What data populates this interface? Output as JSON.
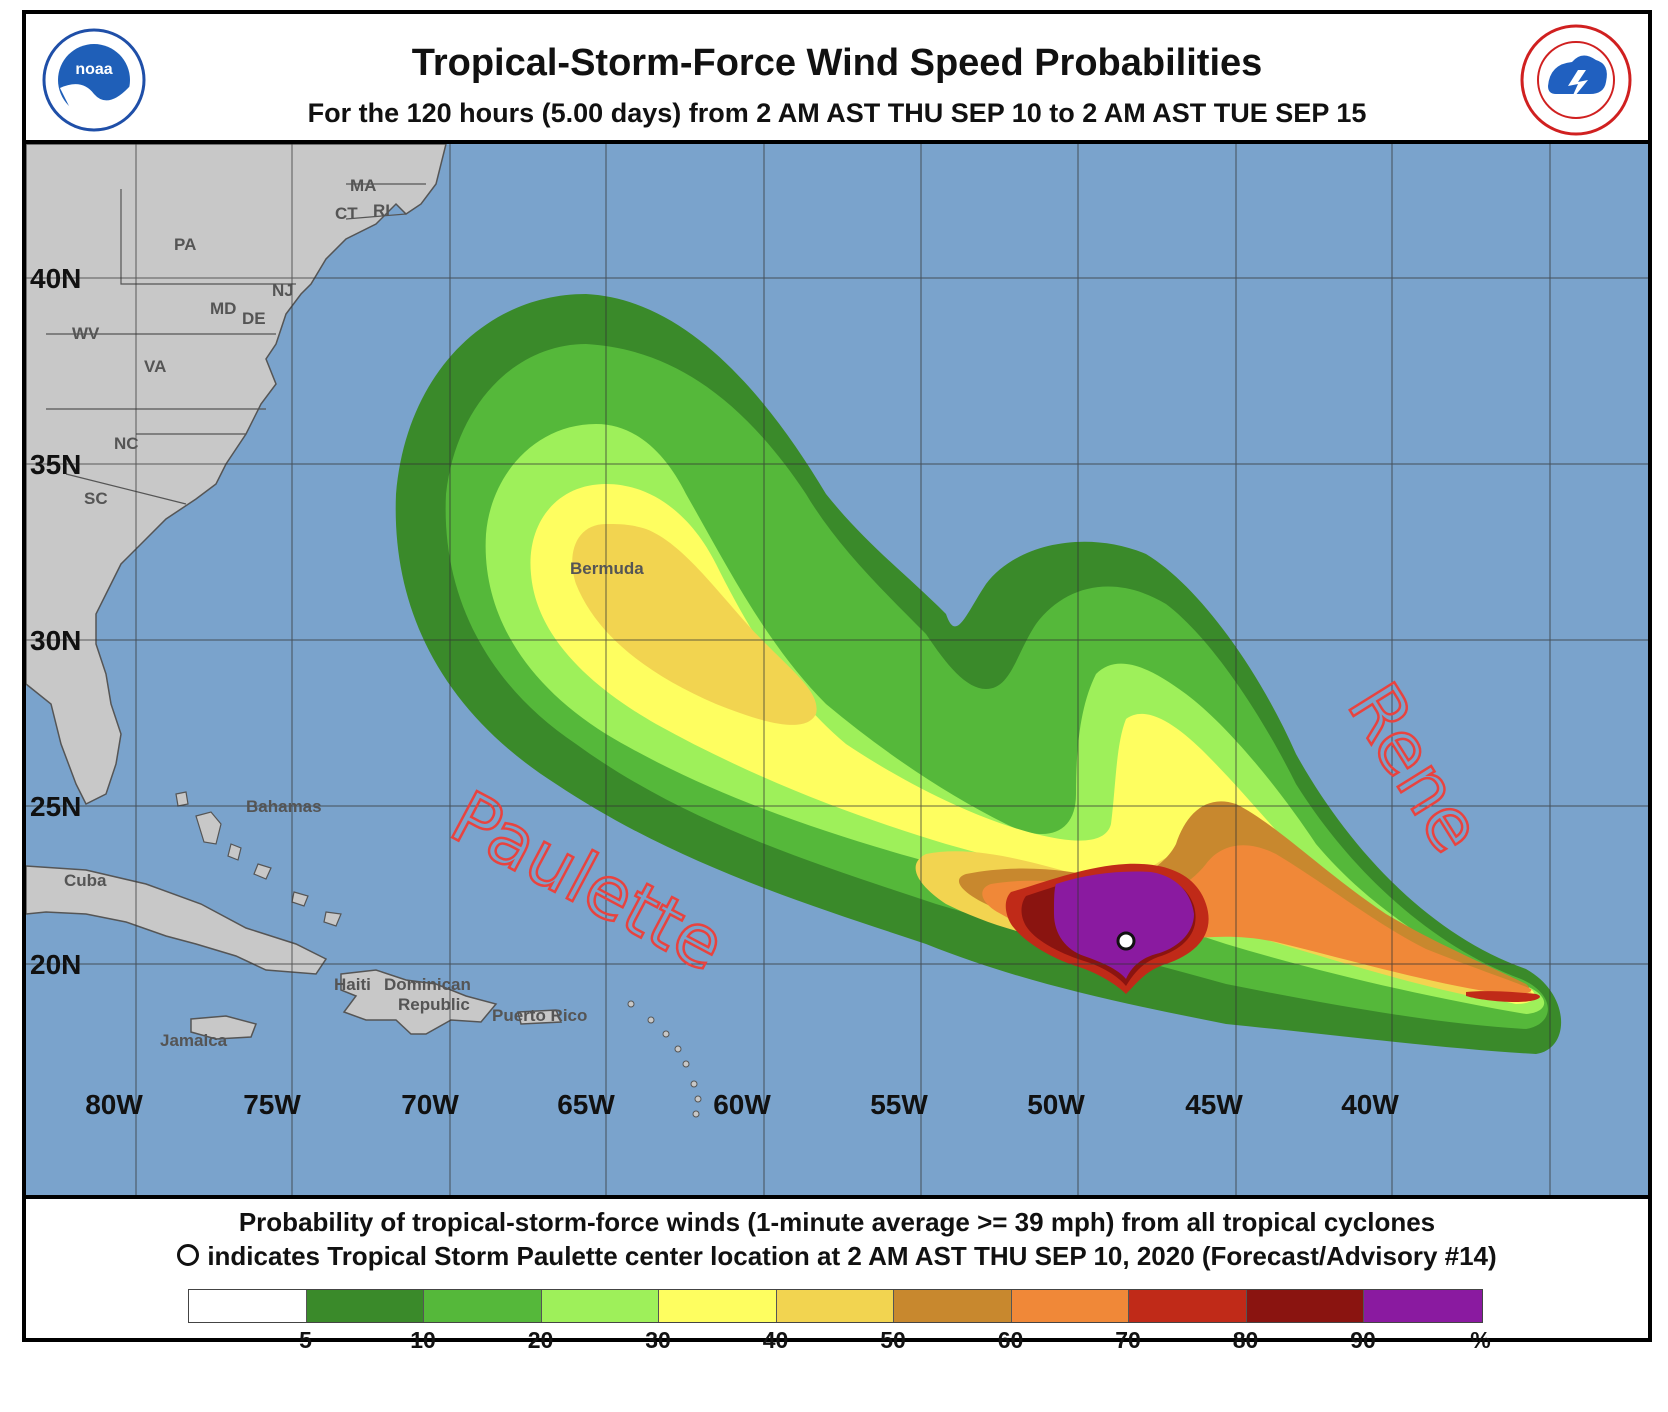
{
  "header": {
    "title": "Tropical-Storm-Force Wind Speed Probabilities",
    "subtitle": "For the 120 hours (5.00 days) from 2 AM AST THU SEP 10 to 2 AM AST TUE SEP 15",
    "left_logo_icon": "noaa-logo-icon",
    "right_logo_icon": "nws-logo-icon"
  },
  "map": {
    "lat_labels": [
      "40N",
      "35N",
      "30N",
      "25N",
      "20N"
    ],
    "lon_labels": [
      "80W",
      "75W",
      "70W",
      "65W",
      "60W",
      "55W",
      "50W",
      "45W",
      "40W"
    ],
    "place_labels": {
      "ma": "MA",
      "ct": "CT",
      "ri": "RI",
      "pa": "PA",
      "nj": "NJ",
      "md": "MD",
      "de": "DE",
      "wv": "WV",
      "va": "VA",
      "nc": "NC",
      "sc": "SC",
      "bermuda": "Bermuda",
      "bahamas": "Bahamas",
      "cuba": "Cuba",
      "haiti": "Haiti",
      "dominican": "Dominican",
      "republic": "Republic",
      "puerto_rico": "Puerto Rico",
      "jamaica": "Jamaica"
    },
    "annotations": {
      "paulette": "Paulette",
      "rene": "Rene"
    },
    "colors": {
      "ocean": "#7aa3cc",
      "land": "#c8c8c8",
      "grid": "#333333",
      "annotation": "#e8433f",
      "p5": "#3a8a2a",
      "p10": "#55b83a",
      "p20": "#9ef05a",
      "p30": "#fefe60",
      "p40": "#f2d450",
      "p50": "#c8882e",
      "p60": "#f08838",
      "p70": "#c02a18",
      "p80": "#8a1410",
      "p90": "#8a1aa0"
    }
  },
  "footer": {
    "line1": "Probability of tropical-storm-force winds (1-minute average >= 39 mph) from all tropical cyclones",
    "line2": "indicates Tropical Storm Paulette center location at 2 AM AST THU SEP 10, 2020 (Forecast/Advisory #14)"
  },
  "legend": {
    "colors": [
      "#ffffff",
      "#3a8a2a",
      "#55b83a",
      "#9ef05a",
      "#fefe60",
      "#f2d450",
      "#c8882e",
      "#f08838",
      "#c02a18",
      "#8a1410",
      "#8a1aa0"
    ],
    "labels": [
      "5",
      "10",
      "20",
      "30",
      "40",
      "50",
      "60",
      "70",
      "80",
      "90",
      "%"
    ]
  }
}
